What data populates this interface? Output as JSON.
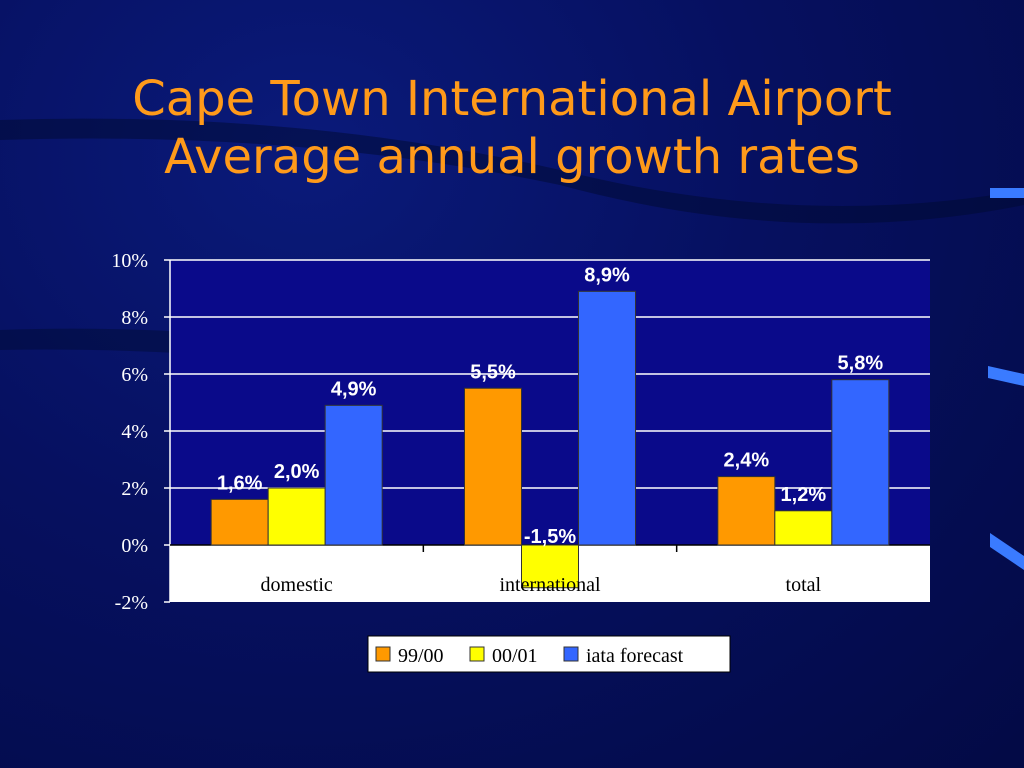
{
  "title_line1": "Cape Town International Airport",
  "title_line2": "Average annual growth rates",
  "colors": {
    "background": "#061060",
    "title": "#ff9a1a",
    "plot_bg": "#0a0a8a"
  },
  "chart_data": {
    "type": "bar",
    "categories": [
      "domestic",
      "international",
      "total"
    ],
    "series": [
      {
        "name": "99/00",
        "color": "#ff9900",
        "values": [
          1.6,
          5.5,
          2.4
        ],
        "labels": [
          "1,6%",
          "5,5%",
          "2,4%"
        ]
      },
      {
        "name": "00/01",
        "color": "#ffff00",
        "values": [
          2.0,
          -1.5,
          1.2
        ],
        "labels": [
          "2,0%",
          "-1,5%",
          "1,2%"
        ]
      },
      {
        "name": "iata forecast",
        "color": "#3366ff",
        "values": [
          4.9,
          8.9,
          5.8
        ],
        "labels": [
          "4,9%",
          "8,9%",
          "5,8%"
        ]
      }
    ],
    "ylim": [
      -2,
      10
    ],
    "yticks": [
      10,
      8,
      6,
      4,
      2,
      0,
      -2
    ],
    "ytick_labels": [
      "10%",
      "8%",
      "6%",
      "4%",
      "2%",
      "0%",
      "-2%"
    ],
    "grid": true,
    "legend_position": "bottom"
  }
}
